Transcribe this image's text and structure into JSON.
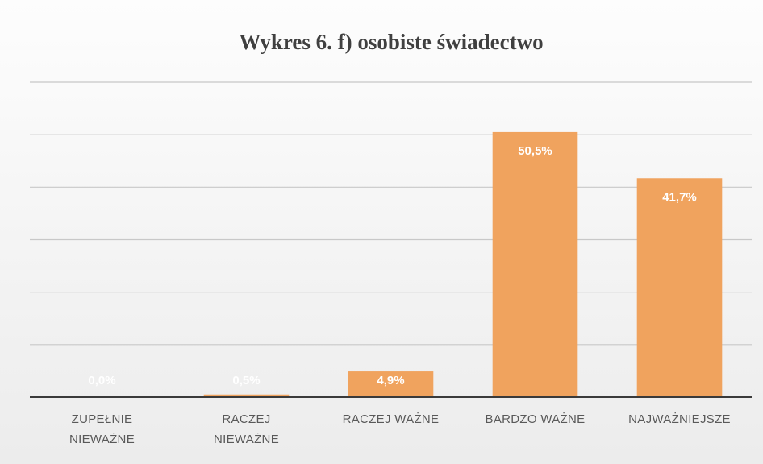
{
  "chart_data": {
    "type": "bar",
    "title": "Wykres 6. f) osobiste świadectwo",
    "categories": [
      "ZUPEŁNIE\nNIEWAŻNE",
      "RACZEJ\nNIEWAŻNE",
      "RACZEJ WAŻNE",
      "BARDZO WAŻNE",
      "NAJWAŻNIEJSZE"
    ],
    "values": [
      0.0,
      0.5,
      4.9,
      50.5,
      41.7
    ],
    "value_labels": [
      "0,0%",
      "0,5%",
      "4,9%",
      "50,5%",
      "41,7%"
    ],
    "color": "#f0a35e",
    "ylim": [
      0,
      60
    ],
    "yticks": [
      0,
      10,
      20,
      30,
      40,
      50,
      60
    ],
    "grid": true
  }
}
